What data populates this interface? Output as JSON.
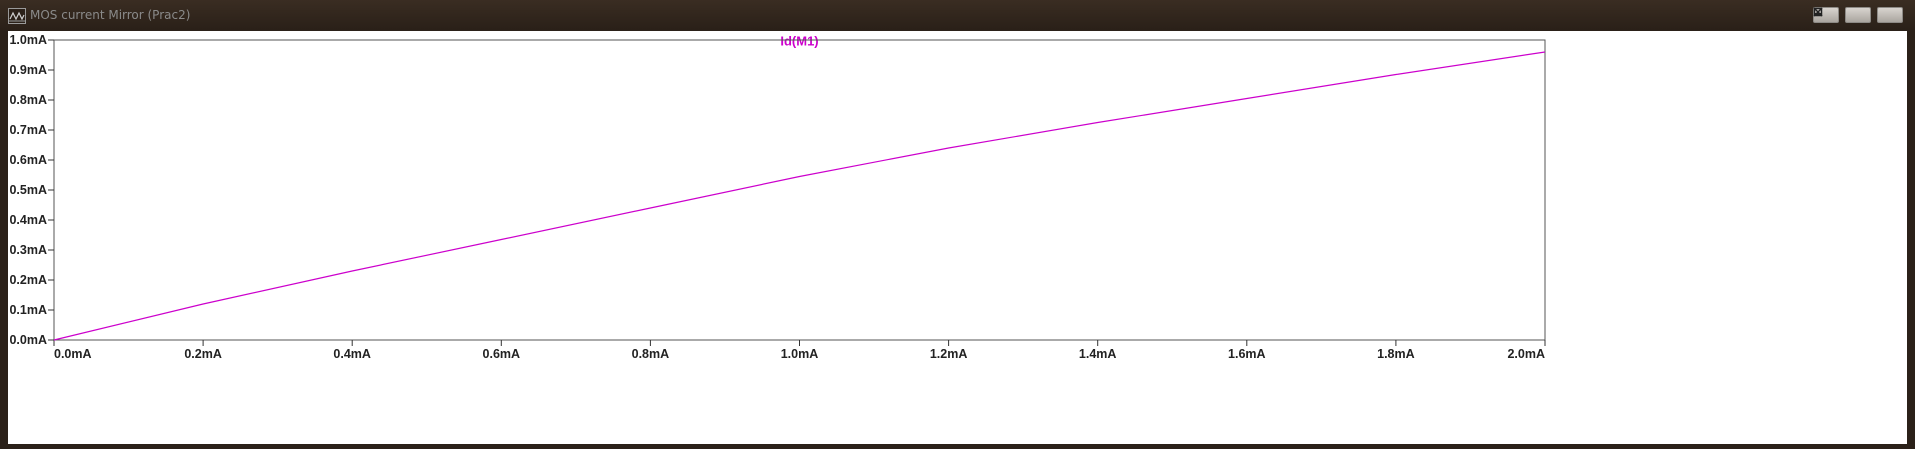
{
  "window": {
    "title": "MOS current Mirror (Prac2)",
    "controls": [
      "minimize",
      "restore",
      "close"
    ]
  },
  "colors": {
    "trace": "#cc00cc",
    "background": "#ffffff",
    "frame": "#2b2119"
  },
  "chart_data": {
    "type": "line",
    "title": "Id(M1)",
    "xlabel": "",
    "ylabel": "",
    "xlim": [
      0,
      2.0
    ],
    "ylim": [
      0,
      1.0
    ],
    "x_unit": "mA",
    "y_unit": "mA",
    "x_ticks": [
      "0.0mA",
      "0.2mA",
      "0.4mA",
      "0.6mA",
      "0.8mA",
      "1.0mA",
      "1.2mA",
      "1.4mA",
      "1.6mA",
      "1.8mA",
      "2.0mA"
    ],
    "y_ticks": [
      "0.0mA",
      "0.1mA",
      "0.2mA",
      "0.3mA",
      "0.4mA",
      "0.5mA",
      "0.6mA",
      "0.7mA",
      "0.8mA",
      "0.9mA",
      "1.0mA"
    ],
    "grid": false,
    "series": [
      {
        "name": "Id(M1)",
        "x": [
          0.0,
          0.2,
          0.4,
          0.6,
          0.8,
          1.0,
          1.2,
          1.4,
          1.6,
          1.8,
          2.0
        ],
        "y": [
          0.0,
          0.12,
          0.23,
          0.335,
          0.44,
          0.545,
          0.64,
          0.725,
          0.805,
          0.885,
          0.96
        ]
      }
    ]
  }
}
